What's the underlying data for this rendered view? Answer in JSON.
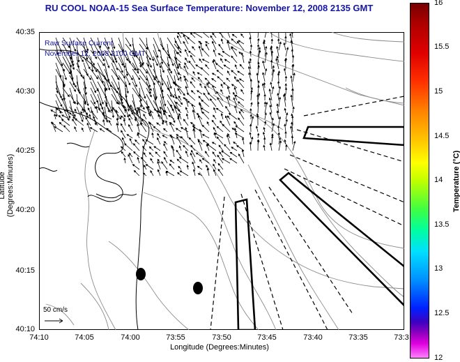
{
  "title": "RU COOL  NOAA-15  Sea Surface Temperature:  November 12, 2008 2135 GMT",
  "legend": {
    "line1": "Raw Surface Current",
    "line2": "November 12, 2008 2100 GMT",
    "scale_label": "50 cm/s"
  },
  "axes": {
    "xlabel": "Longitude (Degrees:Minutes)",
    "ylabel": "Latitude (Degrees:Minutes)",
    "x_ticks": [
      "74:10",
      "74:05",
      "74:00",
      "73:55",
      "73:50",
      "73:45",
      "73:40",
      "73:35",
      "73:3"
    ],
    "y_ticks": [
      "40:35",
      "40:30",
      "40:25",
      "40:20",
      "40:15",
      "40:10"
    ]
  },
  "colorbar": {
    "title": "Temperature (°C)",
    "ticks": [
      "16",
      "15.5",
      "15",
      "14.5",
      "14",
      "13.5",
      "13",
      "12.5",
      "12"
    ]
  },
  "colors": {
    "title": "#1515a8",
    "legend_text": "#1515a8",
    "contour": "#808080",
    "coast": "#000000"
  }
}
